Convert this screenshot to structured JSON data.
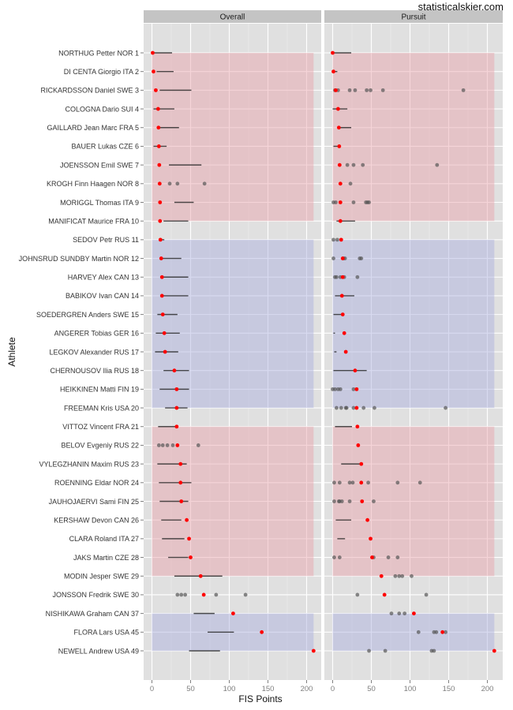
{
  "watermark": "statisticalskier.com",
  "chart_data": {
    "type": "scatter",
    "title": "",
    "xlabel": "FIS Points",
    "ylabel": "Athlete",
    "xlim": [
      -10,
      220
    ],
    "x_ticks": [
      0,
      50,
      100,
      150,
      200
    ],
    "x_minor_ticks": [
      25,
      75,
      125,
      175
    ],
    "grid": true,
    "legend": "none",
    "colors": {
      "panel_bg": "#e0e0e0",
      "strip_bg": "#c4c4c4",
      "grid_major": "#ffffff",
      "grid_minor": "#ececec",
      "band_red": "#e8a0a8",
      "band_blue": "#a8acde",
      "current_point": "#ff0000",
      "history_point": "#555555",
      "range_line": "#222222"
    },
    "facets": [
      "Overall",
      "Pursuit"
    ],
    "bands": [
      {
        "color": "red",
        "from_row": 1,
        "to_row": 10,
        "x_range": [
          0,
          209
        ]
      },
      {
        "color": "blue",
        "from_row": 11,
        "to_row": 20,
        "x_range": [
          0,
          209
        ]
      },
      {
        "color": "red",
        "from_row": 21,
        "to_row": 29,
        "x_range": [
          0,
          209
        ]
      },
      {
        "color": "blue",
        "from_row": 31,
        "to_row": 33,
        "x_range": [
          0,
          209
        ]
      }
    ],
    "athletes": [
      {
        "label": "NORTHUG Petter NOR 1",
        "overall": {
          "current": 1,
          "range": [
            1,
            26
          ],
          "points": []
        },
        "pursuit": {
          "current": 0,
          "range": [
            0,
            24
          ],
          "points": []
        }
      },
      {
        "label": "DI CENTA Giorgio ITA 2",
        "overall": {
          "current": 2,
          "range": [
            6,
            28
          ],
          "points": []
        },
        "pursuit": {
          "current": 1,
          "range": [
            1,
            6
          ],
          "points": []
        }
      },
      {
        "label": "RICKARDSSON Daniel SWE 3",
        "overall": {
          "current": 5,
          "range": [
            10,
            51
          ],
          "points": []
        },
        "pursuit": {
          "current": 4,
          "range": null,
          "points": [
            3,
            7,
            22,
            29,
            44,
            49,
            65,
            169
          ]
        }
      },
      {
        "label": "COLOGNA Dario SUI 4",
        "overall": {
          "current": 8,
          "range": [
            2,
            29
          ],
          "points": []
        },
        "pursuit": {
          "current": 7,
          "range": [
            0,
            19
          ],
          "points": []
        }
      },
      {
        "label": "GAILLARD Jean Marc FRA 5",
        "overall": {
          "current": 8.5,
          "range": [
            9,
            35
          ],
          "points": []
        },
        "pursuit": {
          "current": 8,
          "range": [
            8,
            24
          ],
          "points": []
        }
      },
      {
        "label": "BAUER Lukas CZE 6",
        "overall": {
          "current": 9,
          "range": [
            2,
            19
          ],
          "points": []
        },
        "pursuit": {
          "current": 8.5,
          "range": [
            1,
            7
          ],
          "points": []
        }
      },
      {
        "label": "JOENSSON Emil SWE 7",
        "overall": {
          "current": 9.5,
          "range": [
            22,
            64
          ],
          "points": []
        },
        "pursuit": {
          "current": 9,
          "range": null,
          "points": [
            19,
            27,
            39,
            135
          ]
        }
      },
      {
        "label": "KROGH Finn Haagen NOR 8",
        "overall": {
          "current": 10,
          "range": null,
          "points": [
            23,
            33,
            68
          ]
        },
        "pursuit": {
          "current": 10,
          "range": null,
          "points": [
            23
          ]
        }
      },
      {
        "label": "MORIGGL Thomas ITA 9",
        "overall": {
          "current": 10.5,
          "range": [
            29,
            54
          ],
          "points": []
        },
        "pursuit": {
          "current": 10,
          "range": null,
          "points": [
            1,
            4,
            27,
            43,
            45,
            47
          ]
        }
      },
      {
        "label": "MANIFICAT Maurice FRA 10",
        "overall": {
          "current": 10.5,
          "range": [
            15,
            47
          ],
          "points": []
        },
        "pursuit": {
          "current": 10,
          "range": [
            5,
            29
          ],
          "points": []
        }
      },
      {
        "label": "SEDOV Petr RUS 11",
        "overall": {
          "current": 11,
          "range": [
            11,
            16
          ],
          "points": []
        },
        "pursuit": {
          "current": 11,
          "range": null,
          "points": [
            1,
            6
          ]
        }
      },
      {
        "label": "JOHNSRUD SUNDBY Martin NOR 12",
        "overall": {
          "current": 12,
          "range": [
            12,
            38
          ],
          "points": []
        },
        "pursuit": {
          "current": 13,
          "range": null,
          "points": [
            1,
            14,
            16,
            35,
            37
          ]
        }
      },
      {
        "label": "HARVEY Alex CAN 13",
        "overall": {
          "current": 13,
          "range": [
            13,
            47
          ],
          "points": []
        },
        "pursuit": {
          "current": 13,
          "range": null,
          "points": [
            3,
            5,
            10,
            15,
            32
          ]
        }
      },
      {
        "label": "BABIKOV Ivan CAN 14",
        "overall": {
          "current": 13,
          "range": [
            13,
            47
          ],
          "points": []
        },
        "pursuit": {
          "current": 12,
          "range": [
            3,
            28
          ],
          "points": []
        }
      },
      {
        "label": "SOEDERGREN Anders SWE 15",
        "overall": {
          "current": 14,
          "range": [
            7,
            33
          ],
          "points": []
        },
        "pursuit": {
          "current": 13,
          "range": [
            1,
            12
          ],
          "points": []
        }
      },
      {
        "label": "ANGERER Tobias GER 16",
        "overall": {
          "current": 16,
          "range": [
            5,
            36
          ],
          "points": []
        },
        "pursuit": {
          "current": 15,
          "range": [
            1,
            3
          ],
          "points": []
        }
      },
      {
        "label": "LEGKOV Alexander RUS 17",
        "overall": {
          "current": 17,
          "range": [
            4,
            34
          ],
          "points": []
        },
        "pursuit": {
          "current": 17,
          "range": [
            2,
            5
          ],
          "points": []
        }
      },
      {
        "label": "CHERNOUSOV Ilia RUS 18",
        "overall": {
          "current": 29,
          "range": [
            15,
            48
          ],
          "points": []
        },
        "pursuit": {
          "current": 29,
          "range": [
            1,
            44
          ],
          "points": []
        }
      },
      {
        "label": "HEIKKINEN Matti FIN 19",
        "overall": {
          "current": 32,
          "range": [
            10,
            48
          ],
          "points": []
        },
        "pursuit": {
          "current": 31,
          "range": null,
          "points": [
            0,
            3,
            7,
            10,
            27
          ]
        }
      },
      {
        "label": "FREEMAN Kris USA 20",
        "overall": {
          "current": 32,
          "range": [
            17,
            46
          ],
          "points": []
        },
        "pursuit": {
          "current": 31,
          "range": null,
          "points": [
            5,
            11,
            17,
            18,
            27,
            40,
            54,
            146
          ]
        }
      },
      {
        "label": "VITTOZ Vincent FRA 21",
        "overall": {
          "current": 32,
          "range": [
            8,
            31
          ],
          "points": []
        },
        "pursuit": {
          "current": 32,
          "range": [
            3,
            25
          ],
          "points": []
        }
      },
      {
        "label": "BELOV Evgeniy RUS 22",
        "overall": {
          "current": 33,
          "range": null,
          "points": [
            9,
            14,
            20,
            27,
            60
          ]
        },
        "pursuit": {
          "current": 33,
          "range": null,
          "points": []
        }
      },
      {
        "label": "VYLEGZHANIN Maxim RUS 23",
        "overall": {
          "current": 37,
          "range": [
            7,
            45
          ],
          "points": []
        },
        "pursuit": {
          "current": 37,
          "range": [
            11,
            37
          ],
          "points": []
        }
      },
      {
        "label": "ROENNING Eldar NOR 24",
        "overall": {
          "current": 37,
          "range": [
            9,
            51
          ],
          "points": []
        },
        "pursuit": {
          "current": 37,
          "range": null,
          "points": [
            2,
            9,
            22,
            26,
            46,
            84,
            113
          ]
        }
      },
      {
        "label": "JAUHOJAERVI Sami FIN 25",
        "overall": {
          "current": 38,
          "range": [
            10,
            47
          ],
          "points": []
        },
        "pursuit": {
          "current": 38,
          "range": null,
          "points": [
            2,
            8,
            9,
            12,
            22,
            53
          ]
        }
      },
      {
        "label": "KERSHAW Devon CAN 26",
        "overall": {
          "current": 45,
          "range": [
            12,
            38
          ],
          "points": []
        },
        "pursuit": {
          "current": 45,
          "range": [
            4,
            24
          ],
          "points": []
        }
      },
      {
        "label": "CLARA Roland ITA 27",
        "overall": {
          "current": 48,
          "range": [
            13,
            42
          ],
          "points": []
        },
        "pursuit": {
          "current": 49,
          "range": [
            6,
            16
          ],
          "points": []
        }
      },
      {
        "label": "JAKS Martin CZE 28",
        "overall": {
          "current": 50,
          "range": [
            21,
            47
          ],
          "points": []
        },
        "pursuit": {
          "current": 51,
          "range": null,
          "points": [
            2,
            9,
            53,
            72,
            84
          ]
        }
      },
      {
        "label": "MODIN Jesper SWE 29",
        "overall": {
          "current": 63,
          "range": [
            29,
            91
          ],
          "points": []
        },
        "pursuit": {
          "current": 63,
          "range": null,
          "points": [
            81,
            86,
            90,
            102
          ]
        }
      },
      {
        "label": "JONSSON Fredrik SWE 30",
        "overall": {
          "current": 67,
          "range": null,
          "points": [
            33,
            38,
            43,
            83,
            121
          ]
        },
        "pursuit": {
          "current": 67,
          "range": null,
          "points": [
            32,
            121
          ]
        }
      },
      {
        "label": "NISHIKAWA Graham CAN 37",
        "overall": {
          "current": 105,
          "range": [
            54,
            81
          ],
          "points": []
        },
        "pursuit": {
          "current": 105,
          "range": null,
          "points": [
            76,
            86,
            93
          ]
        }
      },
      {
        "label": "FLORA Lars USA 45",
        "overall": {
          "current": 142,
          "range": [
            72,
            106
          ],
          "points": []
        },
        "pursuit": {
          "current": 142,
          "range": null,
          "points": [
            111,
            131,
            134,
            146
          ]
        }
      },
      {
        "label": "NEWELL Andrew USA 49",
        "overall": {
          "current": 209,
          "range": [
            48,
            88
          ],
          "points": []
        },
        "pursuit": {
          "current": 209,
          "range": null,
          "points": [
            47,
            68,
            128,
            131
          ]
        }
      }
    ]
  }
}
